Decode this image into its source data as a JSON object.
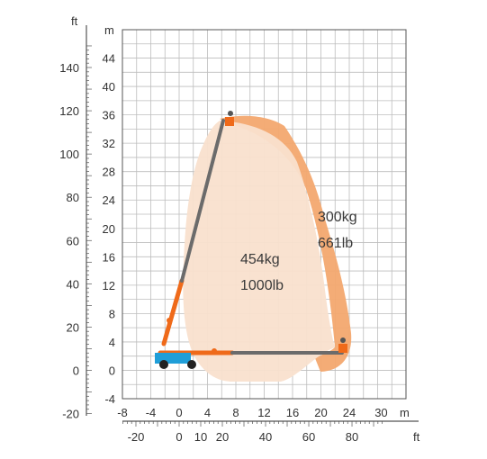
{
  "chart_data": {
    "type": "working-range-diagram",
    "units": {
      "meters": "m",
      "feet": "ft"
    },
    "y_axis_m": {
      "ticks": [
        "-4",
        "0",
        "4",
        "8",
        "12",
        "16",
        "20",
        "24",
        "28",
        "32",
        "36",
        "40",
        "44"
      ],
      "range": [
        -4,
        48
      ]
    },
    "y_axis_ft": {
      "ticks": [
        "-20",
        "0",
        "20",
        "40",
        "60",
        "80",
        "100",
        "120",
        "140"
      ]
    },
    "x_axis_m": {
      "ticks": [
        "-8",
        "-4",
        "0",
        "4",
        "8",
        "12",
        "16",
        "20",
        "24",
        "30"
      ],
      "range": [
        -8,
        32
      ]
    },
    "x_axis_ft": {
      "ticks": [
        "-20",
        "0",
        "10",
        "20",
        "40",
        "60",
        "80"
      ]
    },
    "zones": [
      {
        "name": "outer",
        "capacity_kg": "300kg",
        "capacity_lb": "661lb",
        "color": "#f3a86f"
      },
      {
        "name": "inner",
        "capacity_kg": "454kg",
        "capacity_lb": "1000lb",
        "color": "#f9e0cd"
      }
    ],
    "colors": {
      "boom_orange": "#ef6a1a",
      "boom_gray": "#6b6b6b",
      "chassis_blue": "#1f9ed8",
      "grid": "#b5b5b5",
      "frame": "#555555"
    }
  }
}
